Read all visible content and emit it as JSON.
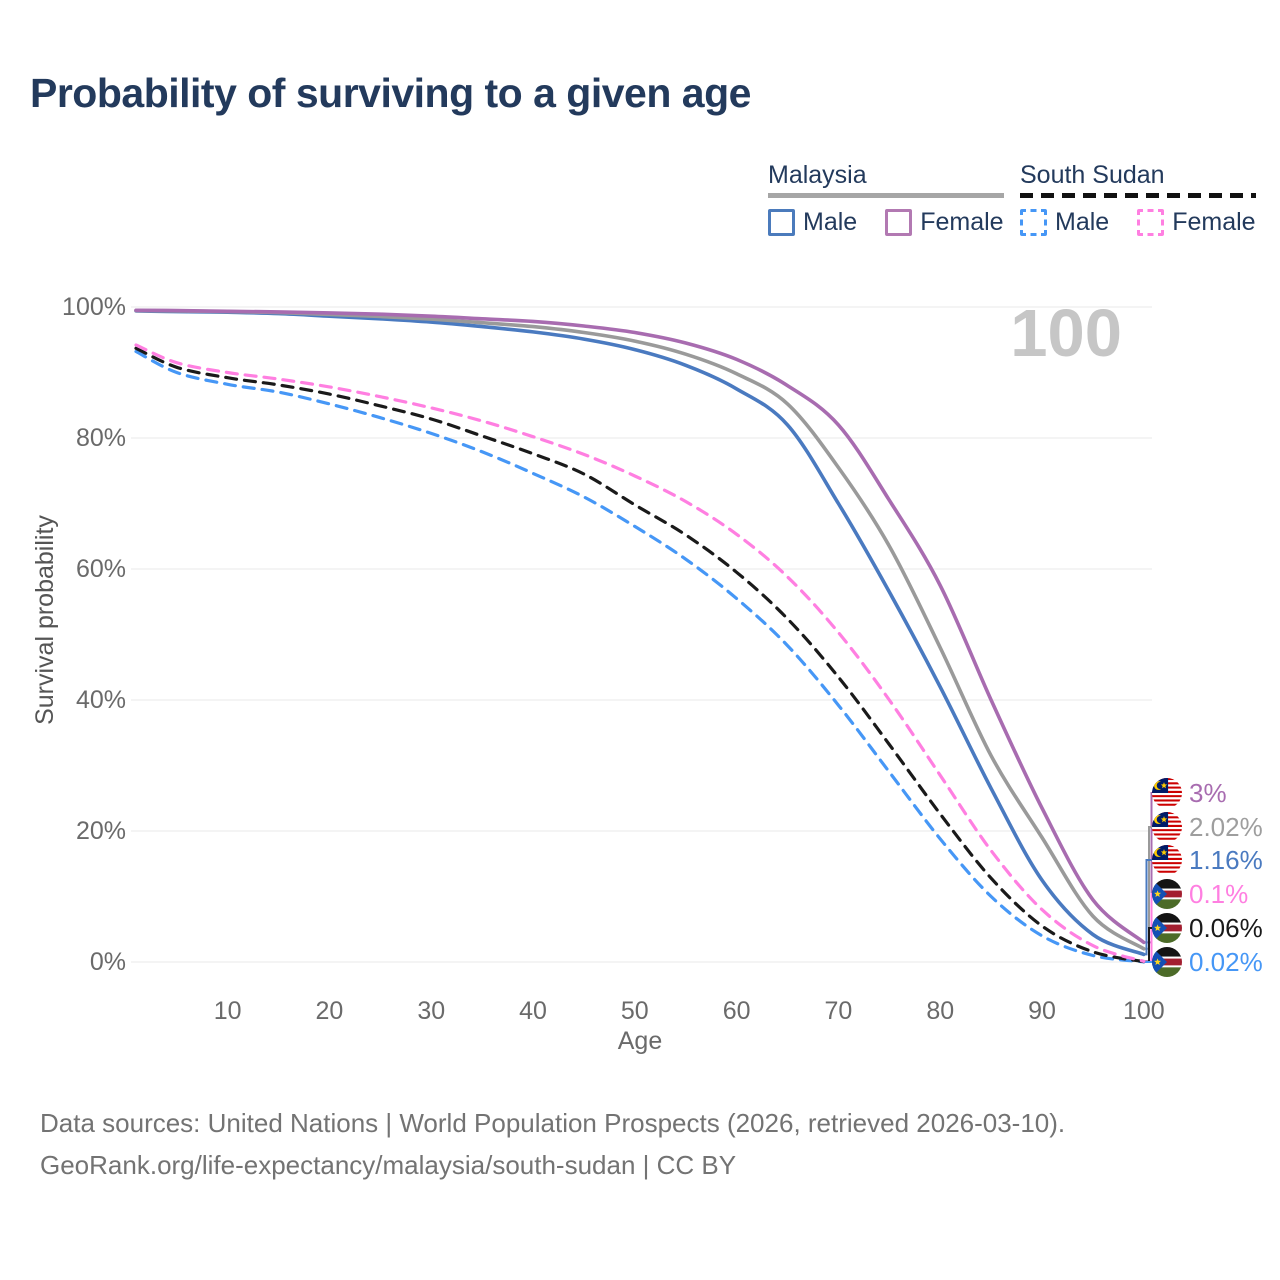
{
  "title": "Probability of surviving to a given age",
  "watermark": "100",
  "legend": {
    "groups": [
      {
        "country": "Malaysia",
        "line_style": "solid",
        "items": [
          {
            "label": "Male",
            "color": "#4b7bbc"
          },
          {
            "label": "Female",
            "color": "#b279b2"
          }
        ]
      },
      {
        "country": "South Sudan",
        "line_style": "dashed",
        "items": [
          {
            "label": "Male",
            "color": "#4697f6"
          },
          {
            "label": "Female",
            "color": "#ff7fe1"
          }
        ]
      }
    ]
  },
  "chart_data": {
    "type": "line",
    "title": "Probability of surviving to a given age",
    "xlabel": "Age",
    "ylabel": "Survival probability",
    "xlim": [
      1,
      100
    ],
    "ylim": [
      0,
      100
    ],
    "grid": "horizontal",
    "x_ticks": [
      10,
      20,
      30,
      40,
      50,
      60,
      70,
      80,
      90,
      100
    ],
    "y_ticks": [
      {
        "label": "0%",
        "pct": 0
      },
      {
        "label": "20%",
        "pct": 20
      },
      {
        "label": "40%",
        "pct": 40
      },
      {
        "label": "60%",
        "pct": 60
      },
      {
        "label": "80%",
        "pct": 80
      },
      {
        "label": "100%",
        "pct": 100
      }
    ],
    "ages": [
      1,
      5,
      10,
      15,
      20,
      25,
      30,
      35,
      40,
      45,
      50,
      55,
      60,
      65,
      70,
      75,
      80,
      85,
      90,
      95,
      100
    ],
    "series": [
      {
        "name": "Malaysia Female",
        "country": "Malaysia",
        "sex": "Female",
        "line_style": "solid",
        "color": "#a86cb0",
        "flag": "malaysia",
        "end_label": "3%",
        "end_label_color": "#a86cb0",
        "values": [
          99.5,
          99.45,
          99.35,
          99.25,
          99.1,
          98.9,
          98.6,
          98.2,
          97.8,
          97.1,
          96.1,
          94.5,
          92.0,
          88.0,
          82.0,
          70.5,
          57.5,
          40.0,
          23.5,
          9.5,
          3.0
        ]
      },
      {
        "name": "Malaysia Both sexes",
        "country": "Malaysia",
        "sex": "Both",
        "line_style": "solid",
        "color": "#9a9a9a",
        "flag": "malaysia",
        "end_label": "2.02%",
        "end_label_color": "#9e9e9e",
        "values": [
          99.45,
          99.4,
          99.3,
          99.15,
          98.85,
          98.55,
          98.15,
          97.6,
          97.0,
          96.1,
          94.8,
          92.8,
          89.8,
          85.2,
          75.5,
          63.5,
          48.0,
          31.5,
          19.0,
          7.0,
          2.02
        ]
      },
      {
        "name": "Malaysia Male",
        "country": "Malaysia",
        "sex": "Male",
        "line_style": "solid",
        "color": "#4a7ac0",
        "flag": "malaysia",
        "end_label": "1.16%",
        "end_label_color": "#4a7ac0",
        "values": [
          99.4,
          99.3,
          99.2,
          99.0,
          98.6,
          98.2,
          97.7,
          97.0,
          96.2,
          95.1,
          93.5,
          91.1,
          87.5,
          82.0,
          70.0,
          56.5,
          42.0,
          26.5,
          12.5,
          4.2,
          1.16
        ]
      },
      {
        "name": "South Sudan Female",
        "country": "South Sudan",
        "sex": "Female",
        "line_style": "dashed",
        "color": "#ff7fe1",
        "flag": "south-sudan",
        "end_label": "0.1%",
        "end_label_color": "#ff7fe1",
        "values": [
          94.2,
          91.5,
          90.0,
          89.0,
          87.8,
          86.3,
          84.6,
          82.6,
          80.2,
          77.5,
          74.2,
          70.3,
          65.3,
          58.8,
          50.3,
          40.0,
          28.5,
          17.0,
          8.0,
          2.5,
          0.1
        ]
      },
      {
        "name": "South Sudan Both sexes",
        "country": "South Sudan",
        "sex": "Both",
        "line_style": "dashed",
        "color": "#1a1a1a",
        "flag": "south-sudan",
        "end_label": "0.06%",
        "end_label_color": "#1a1a1a",
        "values": [
          93.7,
          90.8,
          89.2,
          88.1,
          86.7,
          84.9,
          82.9,
          80.3,
          77.6,
          74.5,
          69.8,
          65.2,
          59.5,
          52.4,
          43.5,
          33.2,
          22.6,
          12.8,
          5.5,
          1.55,
          0.06
        ]
      },
      {
        "name": "South Sudan Male",
        "country": "South Sudan",
        "sex": "Male",
        "line_style": "dashed",
        "color": "#4697f6",
        "flag": "south-sudan",
        "end_label": "0.02%",
        "end_label_color": "#4697f6",
        "values": [
          93.2,
          90.0,
          88.2,
          87.0,
          85.2,
          83.1,
          80.7,
          77.9,
          74.6,
          71.0,
          66.5,
          61.5,
          55.5,
          48.3,
          39.2,
          29.0,
          18.8,
          10.0,
          4.0,
          1.0,
          0.02
        ]
      }
    ]
  },
  "footer": {
    "line1": "Data sources: United Nations | World Population Prospects (2026, retrieved 2026-03-10).",
    "line2": "GeoRank.org/life-expectancy/malaysia/south-sudan | CC BY"
  }
}
